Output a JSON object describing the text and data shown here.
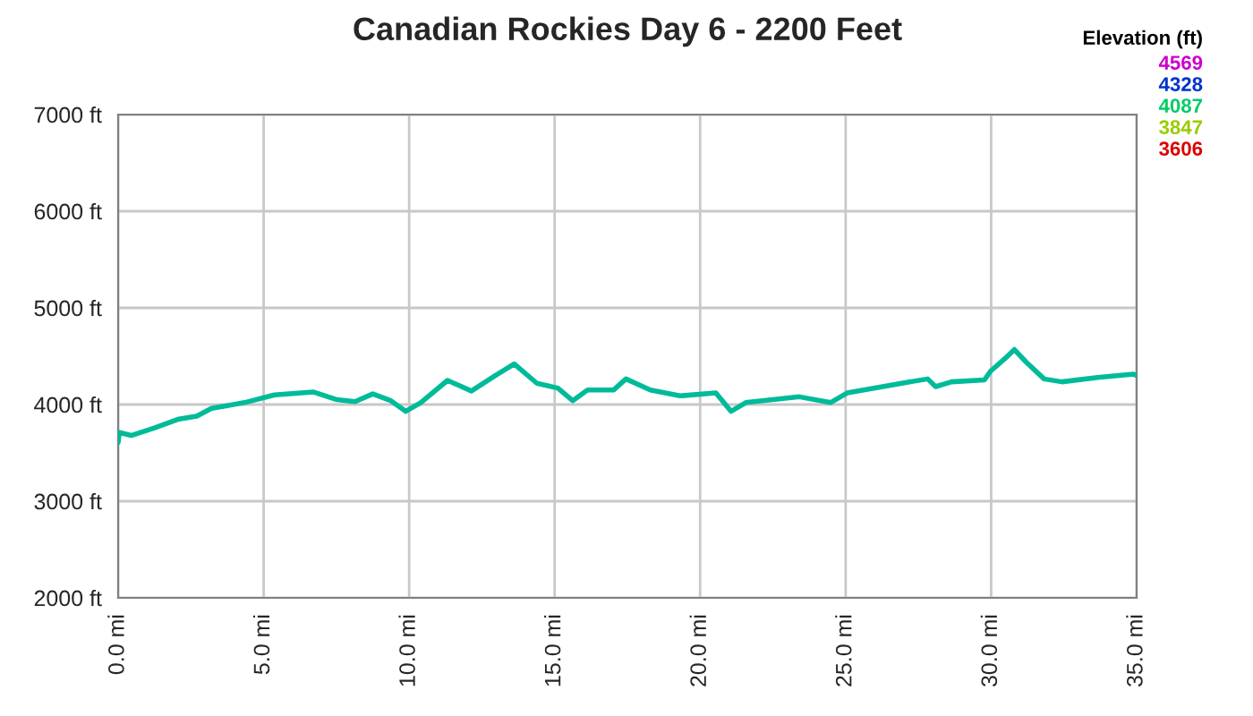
{
  "chart_data": {
    "type": "line",
    "title": "Canadian Rockies Day 6 - 2200 Feet",
    "x": [
      0,
      0.04,
      0.45,
      1.27,
      2.09,
      2.7,
      3.21,
      4.34,
      5.37,
      6.7,
      7.52,
      8.14,
      8.75,
      9.37,
      9.88,
      10.4,
      11.32,
      12.14,
      12.96,
      13.61,
      14.39,
      15.11,
      15.62,
      16.13,
      17.02,
      17.45,
      18.29,
      19.31,
      20.54,
      21.06,
      21.57,
      23.41,
      24.48,
      25.05,
      27.1,
      27.82,
      28.09,
      28.64,
      29.77,
      29.98,
      30.49,
      30.8,
      31.2,
      31.82,
      32.43,
      33.66,
      34.89,
      35.0
    ],
    "series": [
      {
        "color": "#00bb99",
        "values": [
          3606,
          3710,
          3680,
          3760,
          3850,
          3880,
          3960,
          4020,
          4100,
          4130,
          4050,
          4030,
          4110,
          4040,
          3930,
          4020,
          4250,
          4140,
          4300,
          4420,
          4220,
          4170,
          4040,
          4150,
          4150,
          4265,
          4150,
          4090,
          4120,
          3930,
          4020,
          4080,
          4020,
          4120,
          4230,
          4265,
          4185,
          4235,
          4255,
          4345,
          4480,
          4569,
          4440,
          4265,
          4235,
          4280,
          4315,
          4300
        ]
      }
    ],
    "annotations": [
      "Elevation (ft)",
      "4569",
      "4328",
      "4087",
      "3847",
      "3606"
    ],
    "xlim": [
      0,
      35
    ],
    "xticks": [
      {
        "value": 0,
        "label": "0.0 mi"
      },
      {
        "value": 5,
        "label": "5.0 mi"
      },
      {
        "value": 10,
        "label": "10.0 mi"
      },
      {
        "value": 15,
        "label": "15.0 mi"
      },
      {
        "value": 20,
        "label": "20.0 mi"
      },
      {
        "value": 25,
        "label": "25.0 mi"
      },
      {
        "value": 30,
        "label": "30.0 mi"
      },
      {
        "value": 35,
        "label": "35.0 mi"
      }
    ],
    "ylim": [
      2000,
      7000
    ],
    "yticks": [
      {
        "value": 2000,
        "label": "2000 ft"
      },
      {
        "value": 3000,
        "label": "3000 ft"
      },
      {
        "value": 4000,
        "label": "4000 ft"
      },
      {
        "value": 5000,
        "label": "5000 ft"
      },
      {
        "value": 6000,
        "label": "6000 ft"
      },
      {
        "value": 7000,
        "label": "7000 ft"
      }
    ],
    "grid": true
  }
}
